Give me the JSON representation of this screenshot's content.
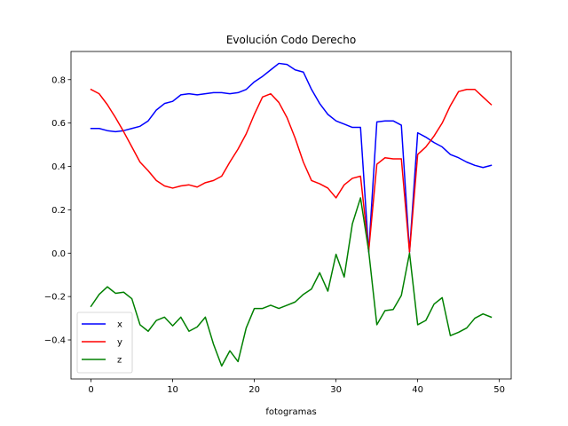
{
  "chart_data": {
    "type": "line",
    "title": "Evolución Codo Derecho",
    "xlabel": "fotogramas",
    "ylabel": "",
    "xlim": [
      -2.45,
      51.45
    ],
    "ylim": [
      -0.58,
      0.93
    ],
    "xticks": [
      0,
      10,
      20,
      30,
      40,
      50
    ],
    "yticks": [
      -0.4,
      -0.2,
      0.0,
      0.2,
      0.4,
      0.6,
      0.8
    ],
    "ytick_labels": [
      "−0.4",
      "−0.2",
      "0.0",
      "0.2",
      "0.4",
      "0.6",
      "0.8"
    ],
    "legend_position": "lower-left",
    "grid": false,
    "x": [
      0,
      1,
      2,
      3,
      4,
      5,
      6,
      7,
      8,
      9,
      10,
      11,
      12,
      13,
      14,
      15,
      16,
      17,
      18,
      19,
      20,
      21,
      22,
      23,
      24,
      25,
      26,
      27,
      28,
      29,
      30,
      31,
      32,
      33,
      34,
      35,
      36,
      37,
      38,
      39,
      40,
      41,
      42,
      43,
      44,
      45,
      46,
      47,
      48,
      49
    ],
    "series": [
      {
        "name": "x",
        "color": "#0000ff",
        "values": [
          0.575,
          0.575,
          0.565,
          0.56,
          0.565,
          0.575,
          0.585,
          0.61,
          0.66,
          0.69,
          0.7,
          0.73,
          0.735,
          0.73,
          0.735,
          0.74,
          0.74,
          0.735,
          0.74,
          0.755,
          0.79,
          0.815,
          0.845,
          0.875,
          0.87,
          0.845,
          0.835,
          0.755,
          0.69,
          0.64,
          0.61,
          0.595,
          0.58,
          0.58,
          0.005,
          0.605,
          0.61,
          0.61,
          0.59,
          0.005,
          0.555,
          0.535,
          0.51,
          0.49,
          0.455,
          0.44,
          0.42,
          0.405,
          0.395,
          0.405
        ]
      },
      {
        "name": "y",
        "color": "#ff0000",
        "values": [
          0.755,
          0.735,
          0.685,
          0.625,
          0.56,
          0.49,
          0.42,
          0.38,
          0.335,
          0.31,
          0.3,
          0.31,
          0.315,
          0.305,
          0.325,
          0.335,
          0.355,
          0.42,
          0.48,
          0.55,
          0.64,
          0.72,
          0.735,
          0.695,
          0.625,
          0.53,
          0.42,
          0.335,
          0.32,
          0.3,
          0.255,
          0.315,
          0.345,
          0.355,
          0.01,
          0.41,
          0.44,
          0.435,
          0.435,
          0.005,
          0.455,
          0.49,
          0.54,
          0.6,
          0.68,
          0.745,
          0.755,
          0.755,
          0.72,
          0.685
        ]
      },
      {
        "name": "z",
        "color": "#008000",
        "values": [
          -0.245,
          -0.19,
          -0.155,
          -0.185,
          -0.18,
          -0.21,
          -0.33,
          -0.36,
          -0.31,
          -0.295,
          -0.335,
          -0.295,
          -0.36,
          -0.34,
          -0.295,
          -0.42,
          -0.52,
          -0.45,
          -0.5,
          -0.345,
          -0.255,
          -0.255,
          -0.24,
          -0.255,
          -0.24,
          -0.225,
          -0.19,
          -0.165,
          -0.09,
          -0.175,
          -0.005,
          -0.11,
          0.135,
          0.255,
          0.01,
          -0.33,
          -0.265,
          -0.26,
          -0.195,
          0.0,
          -0.33,
          -0.31,
          -0.235,
          -0.205,
          -0.38,
          -0.365,
          -0.345,
          -0.3,
          -0.28,
          -0.295
        ]
      }
    ]
  }
}
